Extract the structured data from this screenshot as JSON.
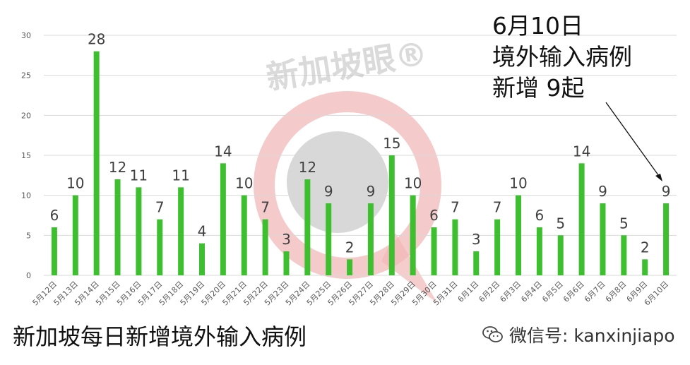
{
  "chart_data": {
    "type": "bar",
    "categories": [
      "5月12日",
      "5月13日",
      "5月14日",
      "5月15日",
      "5月16日",
      "5月17日",
      "5月18日",
      "5月19日",
      "5月20日",
      "5月21日",
      "5月22日",
      "5月23日",
      "5月24日",
      "5月25日",
      "5月26日",
      "5月27日",
      "5月28日",
      "5月29日",
      "5月30日",
      "5月31日",
      "6月1日",
      "6月2日",
      "6月3日",
      "6月4日",
      "6月5日",
      "6月6日",
      "6月7日",
      "6月8日",
      "6月9日",
      "6月10日"
    ],
    "values": [
      6,
      10,
      28,
      12,
      11,
      7,
      11,
      4,
      14,
      10,
      7,
      3,
      12,
      9,
      2,
      9,
      15,
      10,
      6,
      7,
      3,
      7,
      10,
      6,
      5,
      14,
      9,
      5,
      2,
      9
    ],
    "yticks": [
      0,
      5,
      10,
      15,
      20,
      25,
      30
    ],
    "ylim": [
      0,
      30
    ],
    "grid": true,
    "bar_color": "#3dbf2f",
    "gridline_color": "#d9d9d9"
  },
  "title": "新加坡每日新增境外输入病例",
  "callout": {
    "line1": "6月10日",
    "line2": "境外输入病例",
    "line3": "新增 9起"
  },
  "watermark": {
    "text": "新加坡眼®",
    "colors": {
      "ring": "#f2b8b8",
      "disc": "#c8c8c8"
    }
  },
  "footer": {
    "wechat_icon": "wechat-icon",
    "account": "微信号: kanxinjiapo"
  }
}
